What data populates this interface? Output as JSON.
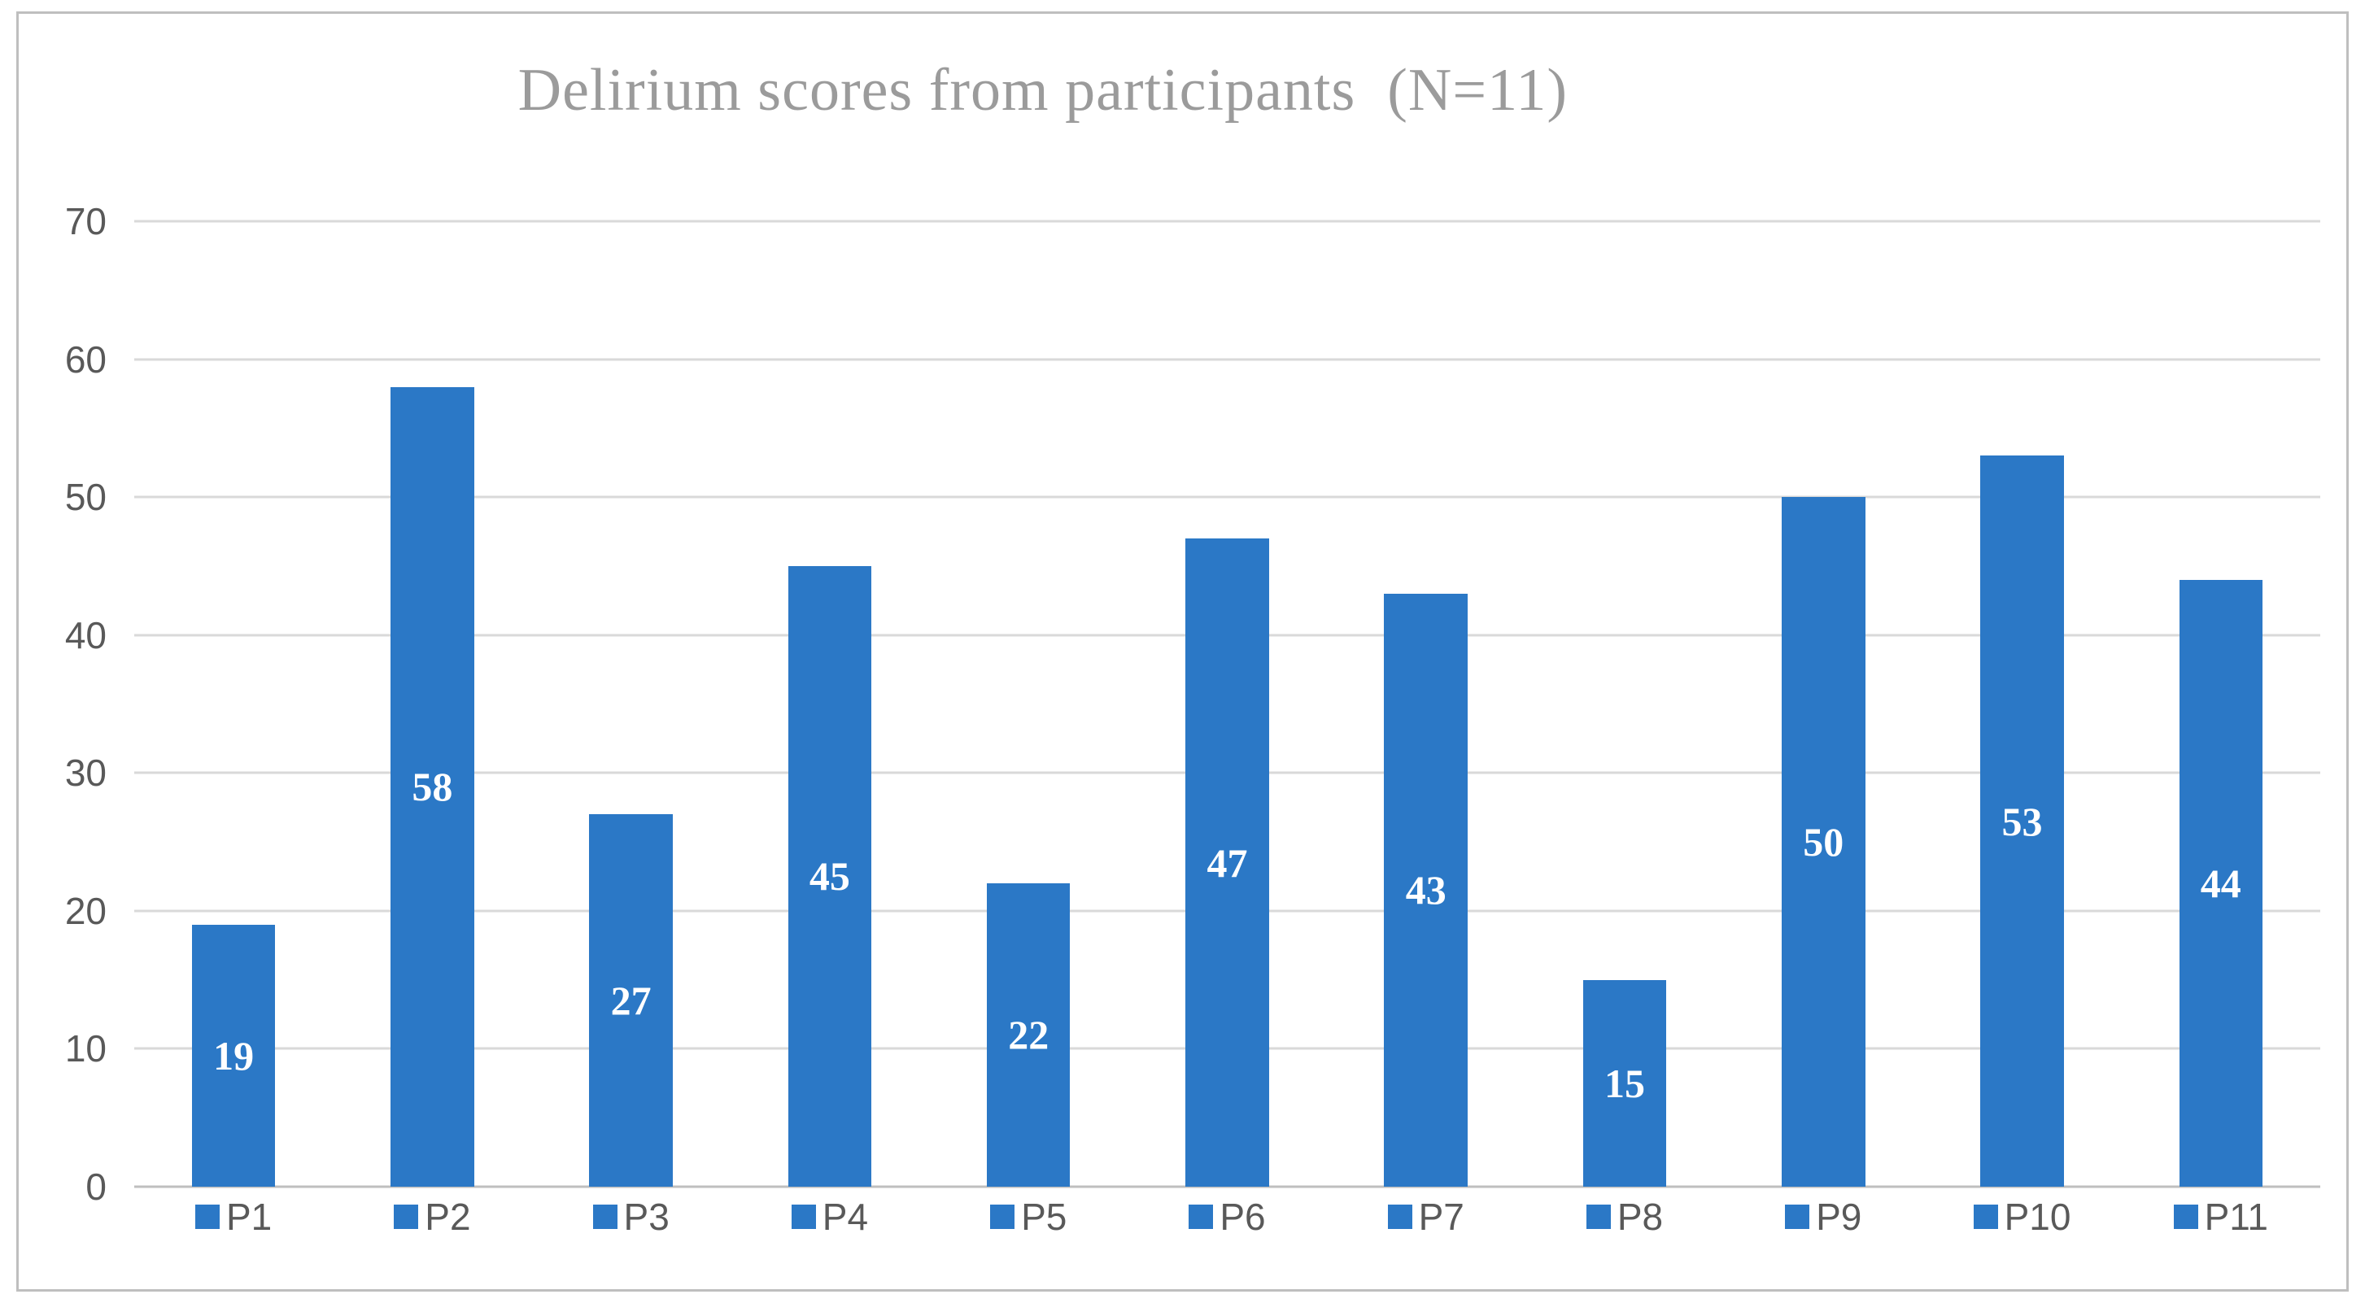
{
  "chart_data": {
    "type": "bar",
    "title": "Delirium scores from participants  (N=11)",
    "categories": [
      "P1",
      "P2",
      "P3",
      "P4",
      "P5",
      "P6",
      "P7",
      "P8",
      "P9",
      "P10",
      "P11"
    ],
    "values": [
      19,
      58,
      27,
      45,
      22,
      47,
      43,
      15,
      50,
      53,
      44
    ],
    "xlabel": "",
    "ylabel": "",
    "ylim": [
      0,
      70
    ],
    "yticks": [
      0,
      10,
      20,
      30,
      40,
      50,
      60,
      70
    ],
    "grid": "horizontal",
    "legend_position": "none",
    "data_label_position": "inside-center",
    "colors": {
      "bar": "#2B78C6",
      "data_label": "#FFFFFF",
      "axis_text": "#595959",
      "title": "#9B9B9B",
      "gridline": "#D9D9D9",
      "chart_border": "#BFBFBF"
    }
  }
}
